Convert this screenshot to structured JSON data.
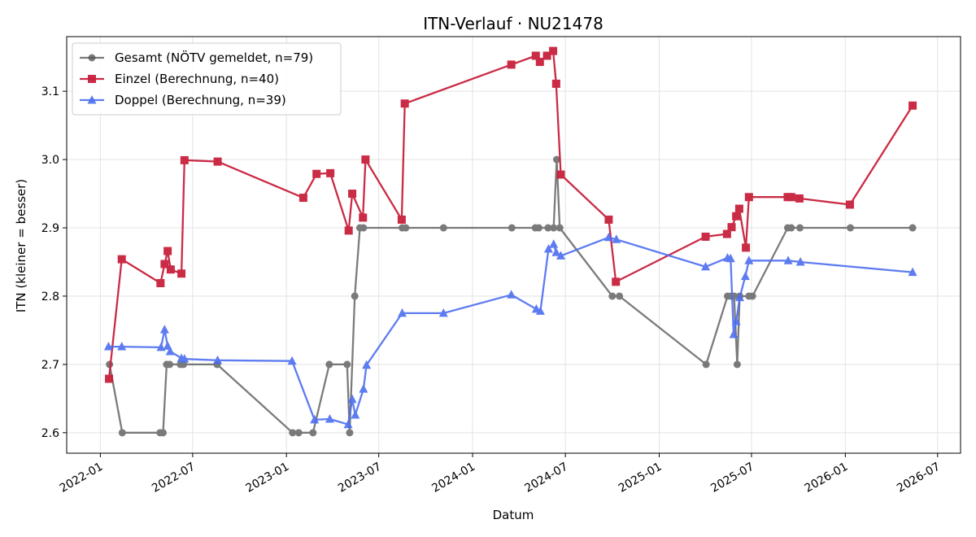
{
  "chart_data": {
    "type": "line",
    "title": "ITN-Verlauf · NU21478",
    "xlabel": "Datum",
    "ylabel": "ITN  (kleiner = besser)",
    "xlim": [
      "2021-10-27",
      "2026-08-15"
    ],
    "ylim": [
      2.57,
      3.18
    ],
    "grid": true,
    "legend_position": "top-left",
    "x_ticks": [
      "2022-01",
      "2022-07",
      "2023-01",
      "2023-07",
      "2024-01",
      "2024-07",
      "2025-01",
      "2025-07",
      "2026-01",
      "2026-07"
    ],
    "y_ticks": [
      "2.6",
      "2.7",
      "2.8",
      "2.9",
      "3.0",
      "3.1"
    ],
    "series": [
      {
        "name": "Gesamt (NÖTV gemeldet, n=79)",
        "color": "#505050",
        "marker": "circle",
        "points": [
          [
            "2022-01-19",
            2.7
          ],
          [
            "2022-02-13",
            2.6
          ],
          [
            "2022-04-28",
            2.6
          ],
          [
            "2022-05-04",
            2.6
          ],
          [
            "2022-05-11",
            2.7
          ],
          [
            "2022-05-17",
            2.7
          ],
          [
            "2022-06-07",
            2.7
          ],
          [
            "2022-06-13",
            2.7
          ],
          [
            "2022-08-18",
            2.7
          ],
          [
            "2023-01-13",
            2.6
          ],
          [
            "2023-01-25",
            2.6
          ],
          [
            "2023-02-22",
            2.6
          ],
          [
            "2023-03-26",
            2.7
          ],
          [
            "2023-04-30",
            2.7
          ],
          [
            "2023-05-05",
            2.6
          ],
          [
            "2023-05-15",
            2.8
          ],
          [
            "2023-05-25",
            2.9
          ],
          [
            "2023-06-01",
            2.9
          ],
          [
            "2023-08-16",
            2.9
          ],
          [
            "2023-08-23",
            2.9
          ],
          [
            "2023-11-05",
            2.9
          ],
          [
            "2024-03-18",
            2.9
          ],
          [
            "2024-05-03",
            2.9
          ],
          [
            "2024-05-10",
            2.9
          ],
          [
            "2024-05-28",
            2.9
          ],
          [
            "2024-06-08",
            2.9
          ],
          [
            "2024-06-14",
            3.0
          ],
          [
            "2024-06-20",
            2.9
          ],
          [
            "2024-10-01",
            2.8
          ],
          [
            "2024-10-15",
            2.8
          ],
          [
            "2025-04-03",
            2.7
          ],
          [
            "2025-05-15",
            2.8
          ],
          [
            "2025-05-22",
            2.8
          ],
          [
            "2025-05-28",
            2.8
          ],
          [
            "2025-06-03",
            2.7
          ],
          [
            "2025-06-08",
            2.8
          ],
          [
            "2025-06-26",
            2.8
          ],
          [
            "2025-07-03",
            2.8
          ],
          [
            "2025-09-10",
            2.9
          ],
          [
            "2025-09-17",
            2.9
          ],
          [
            "2025-10-04",
            2.9
          ],
          [
            "2026-01-11",
            2.9
          ],
          [
            "2026-05-13",
            2.9
          ]
        ]
      },
      {
        "name": "Einzel (Berechnung, n=40)",
        "color": "#c8203c",
        "marker": "square",
        "points": [
          [
            "2022-01-18",
            2.679
          ],
          [
            "2022-02-12",
            2.854
          ],
          [
            "2022-04-29",
            2.819
          ],
          [
            "2022-05-07",
            2.847
          ],
          [
            "2022-05-13",
            2.866
          ],
          [
            "2022-05-19",
            2.839
          ],
          [
            "2022-06-09",
            2.833
          ],
          [
            "2022-06-15",
            2.999
          ],
          [
            "2022-08-19",
            2.997
          ],
          [
            "2023-02-03",
            2.944
          ],
          [
            "2023-03-01",
            2.979
          ],
          [
            "2023-03-28",
            2.98
          ],
          [
            "2023-05-03",
            2.896
          ],
          [
            "2023-05-10",
            2.95
          ],
          [
            "2023-05-31",
            2.915
          ],
          [
            "2023-06-05",
            3.0
          ],
          [
            "2023-08-15",
            2.912
          ],
          [
            "2023-08-21",
            3.082
          ],
          [
            "2024-03-17",
            3.139
          ],
          [
            "2024-05-04",
            3.152
          ],
          [
            "2024-05-12",
            3.143
          ],
          [
            "2024-05-26",
            3.152
          ],
          [
            "2024-06-07",
            3.159
          ],
          [
            "2024-06-13",
            3.111
          ],
          [
            "2024-06-22",
            2.978
          ],
          [
            "2024-09-24",
            2.912
          ],
          [
            "2024-10-08",
            2.821
          ],
          [
            "2025-04-02",
            2.887
          ],
          [
            "2025-05-14",
            2.891
          ],
          [
            "2025-05-23",
            2.901
          ],
          [
            "2025-06-01",
            2.917
          ],
          [
            "2025-06-07",
            2.928
          ],
          [
            "2025-06-20",
            2.871
          ],
          [
            "2025-06-26",
            2.945
          ],
          [
            "2025-09-10",
            2.945
          ],
          [
            "2025-09-17",
            2.945
          ],
          [
            "2025-10-03",
            2.943
          ],
          [
            "2026-01-10",
            2.934
          ],
          [
            "2026-05-13",
            3.079
          ]
        ]
      },
      {
        "name": "Doppel (Berechnung, n=39)",
        "color": "#4d6ef0",
        "marker": "triangle",
        "points": [
          [
            "2022-01-17",
            2.726
          ],
          [
            "2022-02-12",
            2.726
          ],
          [
            "2022-04-30",
            2.725
          ],
          [
            "2022-05-07",
            2.751
          ],
          [
            "2022-05-13",
            2.727
          ],
          [
            "2022-05-18",
            2.719
          ],
          [
            "2022-06-09",
            2.709
          ],
          [
            "2022-06-15",
            2.708
          ],
          [
            "2022-08-19",
            2.706
          ],
          [
            "2023-01-12",
            2.705
          ],
          [
            "2023-02-25",
            2.619
          ],
          [
            "2023-03-27",
            2.62
          ],
          [
            "2023-05-02",
            2.612
          ],
          [
            "2023-05-10",
            2.649
          ],
          [
            "2023-05-16",
            2.626
          ],
          [
            "2023-06-01",
            2.664
          ],
          [
            "2023-06-07",
            2.699
          ],
          [
            "2023-08-16",
            2.775
          ],
          [
            "2023-11-05",
            2.775
          ],
          [
            "2024-03-17",
            2.802
          ],
          [
            "2024-05-05",
            2.781
          ],
          [
            "2024-05-13",
            2.778
          ],
          [
            "2024-05-29",
            2.869
          ],
          [
            "2024-06-08",
            2.876
          ],
          [
            "2024-06-13",
            2.864
          ],
          [
            "2024-06-22",
            2.859
          ],
          [
            "2024-09-24",
            2.886
          ],
          [
            "2024-10-09",
            2.883
          ],
          [
            "2025-04-02",
            2.843
          ],
          [
            "2025-05-15",
            2.856
          ],
          [
            "2025-05-21",
            2.855
          ],
          [
            "2025-05-27",
            2.744
          ],
          [
            "2025-06-01",
            2.763
          ],
          [
            "2025-06-08",
            2.798
          ],
          [
            "2025-06-19",
            2.829
          ],
          [
            "2025-06-26",
            2.852
          ],
          [
            "2025-09-11",
            2.852
          ],
          [
            "2025-10-05",
            2.85
          ],
          [
            "2026-05-13",
            2.835
          ]
        ]
      }
    ]
  }
}
